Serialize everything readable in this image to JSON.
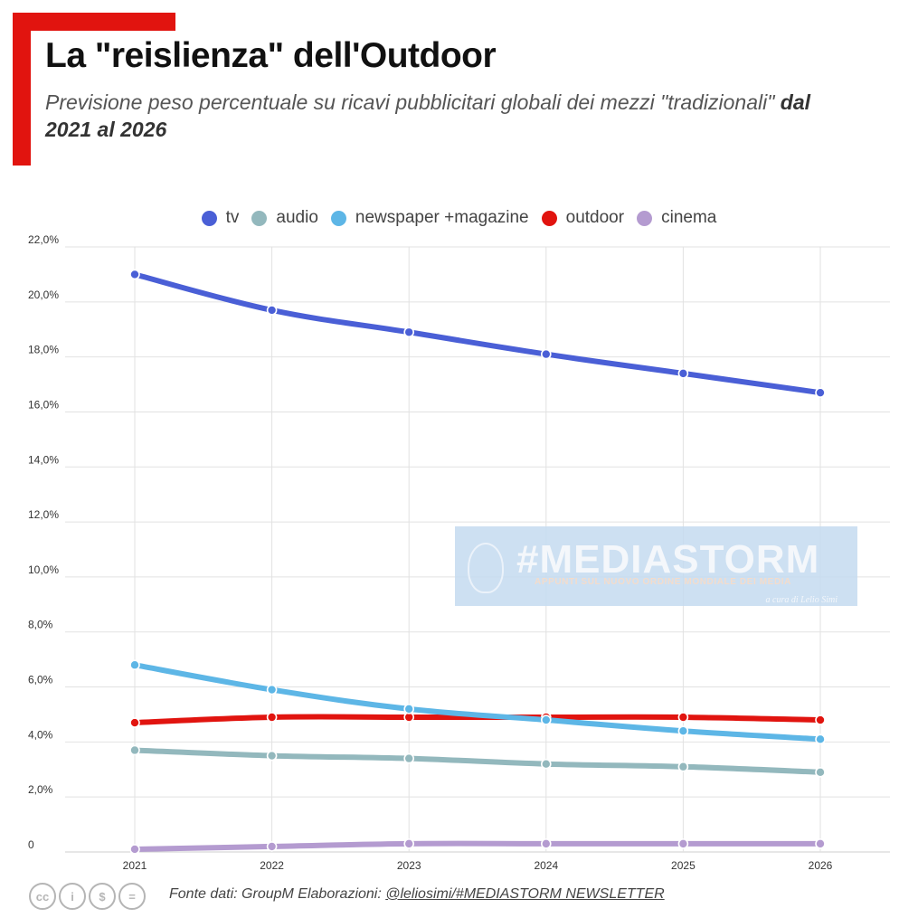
{
  "header": {
    "title": "La \"reislienza\" dell'Outdoor",
    "subtitle_plain": "Previsione peso percentuale su ricavi pubblicitari globali dei mezzi \"tradizionali\" ",
    "subtitle_bold": "dal 2021 al 2026"
  },
  "footer": {
    "source_prefix": "Fonte dati: GroupM Elaborazioni: ",
    "source_link": "@leliosimi/#MEDIASTORM NEWSLETTER",
    "license_icons": [
      "cc",
      "i",
      "$",
      "="
    ]
  },
  "watermark": {
    "main": "#MEDIASTORM",
    "sub": "APPUNTI SUL NUOVO ORDINE MONDIALE DEI MEDIA",
    "author": "a cura di Lelio Simi"
  },
  "chart_data": {
    "type": "line",
    "title": "La \"reislienza\" dell'Outdoor",
    "x": [
      "2021",
      "2022",
      "2023",
      "2024",
      "2025",
      "2026"
    ],
    "ylim": [
      0,
      22
    ],
    "yticks": [
      0,
      2,
      4,
      6,
      8,
      10,
      12,
      14,
      16,
      18,
      20,
      22
    ],
    "ytick_labels": [
      "0",
      "2,0%",
      "4,0%",
      "6,0%",
      "8,0%",
      "10,0%",
      "12,0%",
      "14,0%",
      "16,0%",
      "18,0%",
      "20,0%",
      "22,0%"
    ],
    "grid": true,
    "legend": "top-center",
    "series": [
      {
        "name": "tv",
        "color": "#4a5fd6",
        "values": [
          21.0,
          19.7,
          18.9,
          18.1,
          17.4,
          16.7
        ]
      },
      {
        "name": "audio",
        "color": "#93b8bd",
        "values": [
          3.7,
          3.5,
          3.4,
          3.2,
          3.1,
          2.9
        ]
      },
      {
        "name": "newspaper +magazine",
        "color": "#5db6e6",
        "values": [
          6.8,
          5.9,
          5.2,
          4.8,
          4.4,
          4.1
        ]
      },
      {
        "name": "outdoor",
        "color": "#e1140f",
        "values": [
          4.7,
          4.9,
          4.9,
          4.9,
          4.9,
          4.8
        ]
      },
      {
        "name": "cinema",
        "color": "#b49bd0",
        "values": [
          0.1,
          0.2,
          0.3,
          0.3,
          0.3,
          0.3
        ]
      }
    ]
  }
}
